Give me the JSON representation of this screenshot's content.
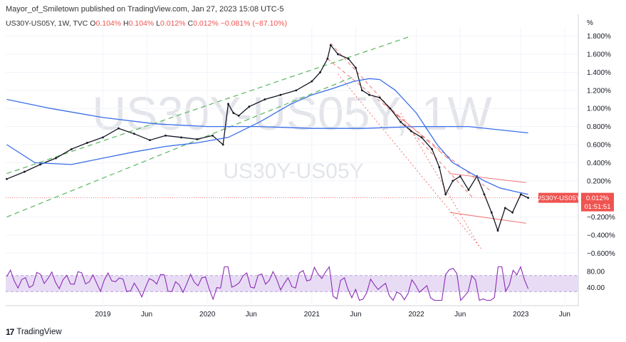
{
  "header": {
    "publish_line": "Mayor_of_Smiletown published on TradingView.com, Jan 27, 2023 15:08 UTC-5"
  },
  "symbol": {
    "name": "US30Y-US05Y, 1W, TVC",
    "o_label": "O",
    "o_value": "0.104%",
    "h_label": "H",
    "h_value": "0.104%",
    "l_label": "L",
    "l_value": "0.012%",
    "c_label": "C",
    "c_value": "0.012%",
    "change": "−0.081% (−87.10%)"
  },
  "watermark": {
    "big": "US30Y-US05Y, 1W",
    "small": "US30Y-US05Y"
  },
  "price_tag": {
    "symbol": "US30Y-US05Y",
    "value": "0.012%",
    "countdown": "01:51:51"
  },
  "footer": {
    "brand": "TradingView"
  },
  "colors": {
    "price": "#131722",
    "ma": "#3a6ee8",
    "channel": "#5ab55e",
    "down": "#ef5350",
    "rsi": "#8a2db5",
    "rsi_band": "#e8dcf5",
    "tag": "#ef5350"
  },
  "chart_data": {
    "type": "line",
    "title": "US30Y-US05Y, 1W, TVC",
    "ylabel": "%",
    "y_axis_unit": "%",
    "yticks": [
      "1.800%",
      "1.600%",
      "1.400%",
      "1.200%",
      "1.000%",
      "0.800%",
      "0.600%",
      "0.400%",
      "0.200%",
      "−0.200%",
      "−0.400%",
      "−0.600%"
    ],
    "ytick_values": [
      1.8,
      1.6,
      1.4,
      1.2,
      1.0,
      0.8,
      0.6,
      0.4,
      0.2,
      -0.2,
      -0.4,
      -0.6
    ],
    "ylim": [
      -0.7,
      1.9
    ],
    "xticks": [
      "2019",
      "Jun",
      "2020",
      "Jun",
      "2021",
      "Jun",
      "2022",
      "Jun",
      "2023",
      "Jun"
    ],
    "xtick_values": [
      2019.0,
      2019.42,
      2020.0,
      2020.42,
      2021.0,
      2021.42,
      2022.0,
      2022.42,
      2023.0,
      2023.42
    ],
    "xlim": [
      2018.07,
      2023.55
    ],
    "series": [
      {
        "x": [
          2018.08,
          2018.25,
          2018.4,
          2018.55,
          2018.7,
          2018.85,
          2019.0,
          2019.15,
          2019.3,
          2019.45,
          2019.6,
          2019.75,
          2019.9,
          2020.05,
          2020.15,
          2020.2,
          2020.25,
          2020.3,
          2020.4,
          2020.55,
          2020.7,
          2020.85,
          2021.0,
          2021.08,
          2021.15,
          2021.18,
          2021.25,
          2021.35,
          2021.42,
          2021.48,
          2021.55,
          2021.65,
          2021.75,
          2021.85,
          2021.95,
          2022.05,
          2022.15,
          2022.22,
          2022.28,
          2022.35,
          2022.42,
          2022.5,
          2022.58,
          2022.65,
          2022.72,
          2022.78,
          2022.85,
          2022.92,
          2023.0,
          2023.07
        ],
        "values": [
          0.22,
          0.3,
          0.38,
          0.45,
          0.55,
          0.62,
          0.68,
          0.78,
          0.72,
          0.65,
          0.7,
          0.68,
          0.66,
          0.7,
          0.6,
          1.05,
          0.95,
          0.92,
          1.02,
          1.1,
          1.15,
          1.2,
          1.3,
          1.4,
          1.55,
          1.7,
          1.6,
          1.55,
          1.45,
          1.2,
          1.15,
          1.12,
          1.0,
          0.85,
          0.75,
          0.68,
          0.55,
          0.35,
          0.05,
          0.2,
          0.25,
          0.1,
          0.25,
          0.05,
          -0.15,
          -0.35,
          -0.1,
          -0.15,
          0.05,
          0.012
        ]
      },
      {
        "x": [
          2018.08,
          2018.35,
          2018.7,
          2019.0,
          2019.3,
          2019.6,
          2019.9,
          2020.2,
          2020.5,
          2020.8,
          2021.0,
          2021.2,
          2021.4,
          2021.55,
          2021.65,
          2021.8,
          2022.0,
          2022.2,
          2022.35,
          2022.5,
          2022.65,
          2022.8,
          2022.95,
          2023.07
        ],
        "values": [
          0.6,
          0.4,
          0.38,
          0.45,
          0.52,
          0.58,
          0.62,
          0.68,
          0.85,
          1.05,
          1.15,
          1.22,
          1.3,
          1.33,
          1.32,
          1.2,
          0.95,
          0.6,
          0.4,
          0.3,
          0.2,
          0.12,
          0.08,
          0.05
        ]
      },
      {
        "x": [
          2018.08,
          2018.5,
          2019.0,
          2019.5,
          2020.0,
          2020.5,
          2021.0,
          2021.5,
          2022.0,
          2022.5,
          2023.07
        ],
        "values": [
          1.1,
          1.0,
          0.9,
          0.83,
          0.8,
          0.8,
          0.78,
          0.78,
          0.8,
          0.8,
          0.73
        ]
      }
    ],
    "rsi": {
      "yticks": [
        "80.00",
        "40.00"
      ],
      "ytick_values": [
        80,
        40
      ],
      "ylim": [
        0,
        100
      ],
      "band": [
        30,
        70
      ]
    }
  }
}
